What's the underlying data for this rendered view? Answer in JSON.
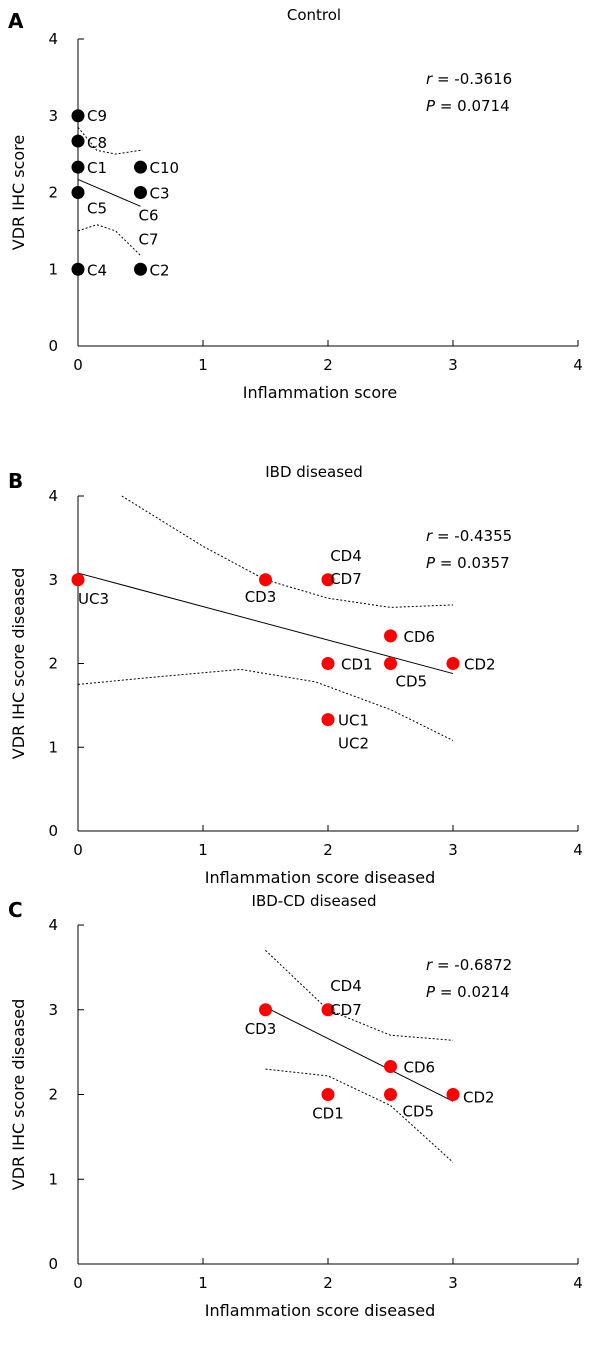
{
  "chart_data": [
    {
      "panel": "A",
      "type": "scatter",
      "title": "Control",
      "xlabel": "Inflammation score",
      "ylabel": "VDR IHC score",
      "xlim": [
        0,
        4
      ],
      "ylim": [
        0,
        4
      ],
      "xticks": [
        "0",
        "1",
        "2",
        "3",
        "4"
      ],
      "yticks": [
        "0",
        "1",
        "2",
        "3",
        "4"
      ],
      "point_color": "#000000",
      "stats": {
        "r": "-0.3616",
        "p": "0.0714"
      },
      "points": [
        {
          "x": 0,
          "y": 3.0,
          "label": "C9"
        },
        {
          "x": 0,
          "y": 2.67,
          "label": "C8"
        },
        {
          "x": 0,
          "y": 2.33,
          "label": "C1"
        },
        {
          "x": 0,
          "y": 2.0,
          "label": "C5"
        },
        {
          "x": 0,
          "y": 1.0,
          "label": "C4"
        },
        {
          "x": 0.5,
          "y": 2.33,
          "label": "C10"
        },
        {
          "x": 0.5,
          "y": 2.0,
          "label": "C3"
        },
        {
          "x": 0.5,
          "y": 1.0,
          "label": "C2"
        }
      ],
      "extra_labels": [
        {
          "x": 0.5,
          "y": 2.0,
          "label": "C6"
        },
        {
          "x": 0.5,
          "y": 2.0,
          "label": "C7"
        }
      ],
      "fit": [
        [
          0,
          2.17
        ],
        [
          0.5,
          1.82
        ]
      ],
      "ci_upper": [
        [
          0,
          2.85
        ],
        [
          0.15,
          2.55
        ],
        [
          0.3,
          2.5
        ],
        [
          0.5,
          2.55
        ]
      ],
      "ci_lower": [
        [
          0,
          1.5
        ],
        [
          0.15,
          1.58
        ],
        [
          0.3,
          1.5
        ],
        [
          0.5,
          1.18
        ]
      ]
    },
    {
      "panel": "B",
      "type": "scatter",
      "title": "IBD diseased",
      "xlabel": "Inflammation score diseased",
      "ylabel": "VDR IHC score diseased",
      "xlim": [
        0,
        4
      ],
      "ylim": [
        0,
        4
      ],
      "xticks": [
        "0",
        "1",
        "2",
        "3",
        "4"
      ],
      "yticks": [
        "0",
        "1",
        "2",
        "3",
        "4"
      ],
      "point_color": "#ff0000",
      "stats": {
        "r": "-0.4355",
        "p": "0.0357"
      },
      "points": [
        {
          "x": 0,
          "y": 3.0,
          "label": "UC3"
        },
        {
          "x": 1.5,
          "y": 3.0,
          "label": "CD3"
        },
        {
          "x": 2,
          "y": 3.0,
          "label": "CD4"
        },
        {
          "x": 2.5,
          "y": 2.33,
          "label": "CD6"
        },
        {
          "x": 2,
          "y": 2.0,
          "label": "CD1"
        },
        {
          "x": 2.5,
          "y": 2.0,
          "label": "CD5"
        },
        {
          "x": 3,
          "y": 2.0,
          "label": "CD2"
        },
        {
          "x": 2,
          "y": 1.33,
          "label": "UC1"
        }
      ],
      "extra_labels": [
        {
          "x": 2,
          "y": 3.0,
          "label": "CD7"
        },
        {
          "x": 2,
          "y": 1.33,
          "label": "UC2"
        }
      ],
      "fit": [
        [
          0,
          3.08
        ],
        [
          3,
          1.88
        ]
      ],
      "ci_upper": [
        [
          0.35,
          4.0
        ],
        [
          1.0,
          3.4
        ],
        [
          1.5,
          3.0
        ],
        [
          2.0,
          2.78
        ],
        [
          2.5,
          2.67
        ],
        [
          3.0,
          2.7
        ]
      ],
      "ci_lower": [
        [
          0,
          1.75
        ],
        [
          0.7,
          1.85
        ],
        [
          1.3,
          1.93
        ],
        [
          1.9,
          1.78
        ],
        [
          2.5,
          1.45
        ],
        [
          3.0,
          1.08
        ]
      ]
    },
    {
      "panel": "C",
      "type": "scatter",
      "title": "IBD-CD diseased",
      "xlabel": "Inflammation score diseased",
      "ylabel": "VDR IHC score diseased",
      "xlim": [
        0,
        4
      ],
      "ylim": [
        0,
        4
      ],
      "xticks": [
        "0",
        "1",
        "2",
        "3",
        "4"
      ],
      "yticks": [
        "0",
        "1",
        "2",
        "3",
        "4"
      ],
      "point_color": "#ff0000",
      "stats": {
        "r": "-0.6872",
        "p": "0.0214"
      },
      "points": [
        {
          "x": 1.5,
          "y": 3.0,
          "label": "CD3"
        },
        {
          "x": 2,
          "y": 3.0,
          "label": "CD4"
        },
        {
          "x": 2.5,
          "y": 2.33,
          "label": "CD6"
        },
        {
          "x": 2,
          "y": 2.0,
          "label": "CD1"
        },
        {
          "x": 2.5,
          "y": 2.0,
          "label": "CD5"
        },
        {
          "x": 3,
          "y": 2.0,
          "label": "CD2"
        }
      ],
      "extra_labels": [
        {
          "x": 2,
          "y": 3.0,
          "label": "CD7"
        }
      ],
      "fit": [
        [
          1.5,
          3.03
        ],
        [
          3,
          1.92
        ]
      ],
      "ci_upper": [
        [
          1.5,
          3.7
        ],
        [
          2.0,
          3.0
        ],
        [
          2.5,
          2.7
        ],
        [
          3.0,
          2.64
        ]
      ],
      "ci_lower": [
        [
          1.5,
          2.3
        ],
        [
          2.0,
          2.22
        ],
        [
          2.5,
          1.87
        ],
        [
          3.0,
          1.2
        ]
      ]
    }
  ]
}
